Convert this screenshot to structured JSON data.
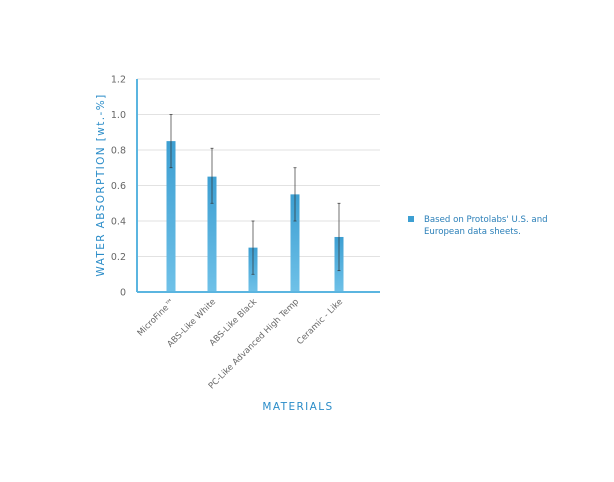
{
  "chart_data": {
    "type": "bar",
    "title": "",
    "xlabel": "MATERIALS",
    "ylabel": "WATER ABSORPTION [wt.-%]",
    "categories": [
      "MicroFine™",
      "ABS-Like White",
      "ABS-Like Black",
      "PC-Like Advanced High Temp",
      "Ceramic - Like"
    ],
    "series": [
      {
        "name": "Based on Protolabs' U.S. and European data sheets.",
        "values": [
          0.85,
          0.65,
          0.25,
          0.55,
          0.31
        ],
        "error_low": [
          0.7,
          0.5,
          0.1,
          0.4,
          0.12
        ],
        "error_high": [
          1.0,
          0.81,
          0.4,
          0.7,
          0.5
        ]
      }
    ],
    "yticks": [
      "0",
      "0.2",
      "0.4",
      "0.6",
      "0.8",
      "1.0",
      "1.2"
    ],
    "ylim": [
      0,
      1.2
    ],
    "grid": true,
    "legend_position": "right",
    "legend_lines": [
      "Based on Protolabs' U.S. and",
      "European data sheets."
    ],
    "colors": {
      "bar_top": "#3d9fd2",
      "bar_bottom": "#6fc1e8",
      "axis": "#5bb5e0",
      "grid": "#d9d9d9",
      "text_accent": "#2a8cc8",
      "error_bar": "#333333"
    }
  }
}
